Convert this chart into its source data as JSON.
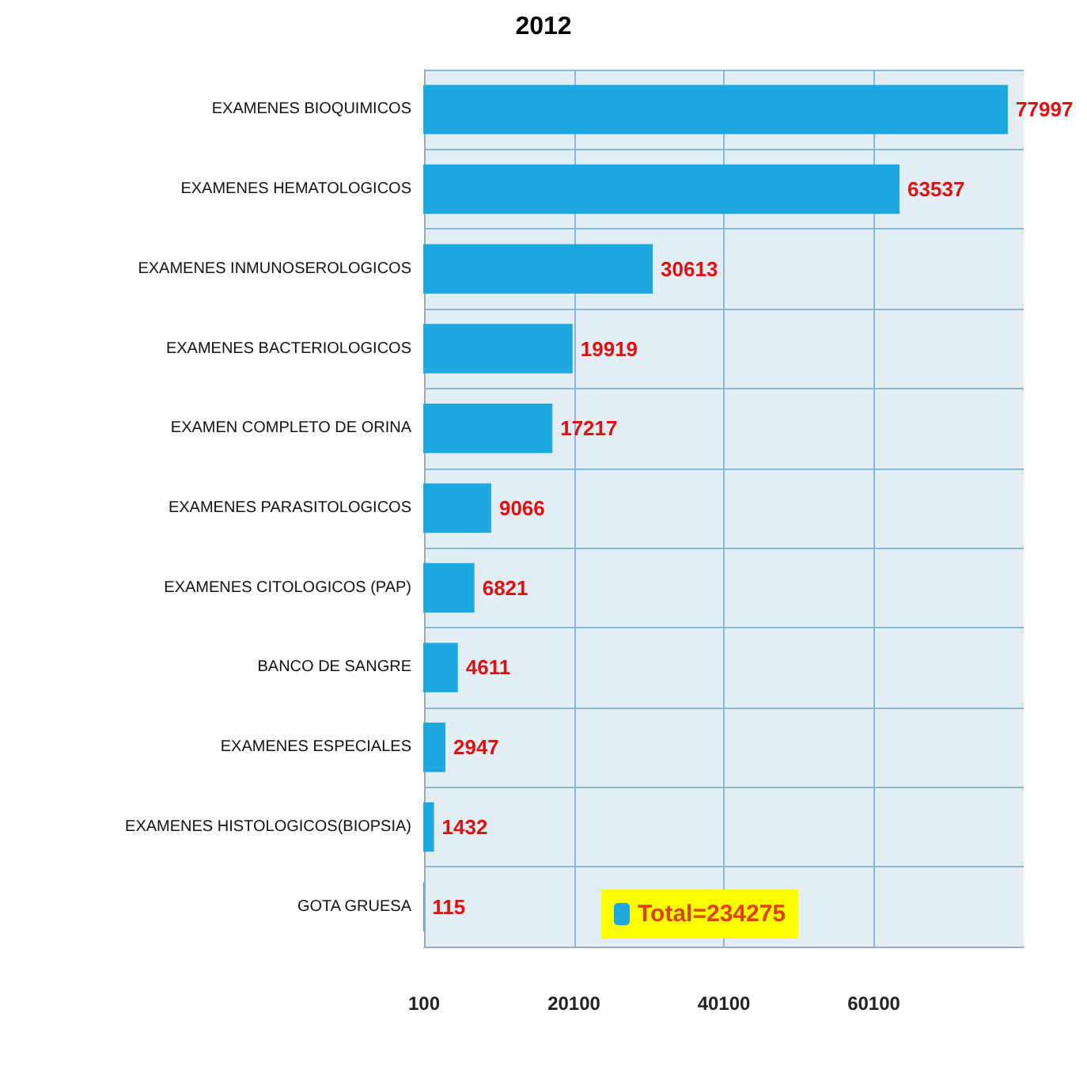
{
  "chart_data": {
    "type": "bar",
    "orientation": "horizontal",
    "title": "2012",
    "categories": [
      "EXAMENES BIOQUIMICOS",
      "EXAMENES HEMATOLOGICOS",
      "EXAMENES INMUNOSEROLOGICOS",
      "EXAMENES BACTERIOLOGICOS",
      "EXAMEN COMPLETO DE ORINA",
      "EXAMENES PARASITOLOGICOS",
      "EXAMENES CITOLOGICOS (PAP)",
      "BANCO DE SANGRE",
      "EXAMENES ESPECIALES",
      "EXAMENES HISTOLOGICOS(BIOPSIA)",
      "GOTA GRUESA"
    ],
    "series": [
      {
        "name": "Total=234275",
        "color": "#1ea8e0",
        "values": [
          77997,
          63537,
          30613,
          19919,
          17217,
          9066,
          6821,
          4611,
          2947,
          1432,
          115
        ]
      }
    ],
    "xlim": [
      100,
      80100
    ],
    "xticks": [
      100,
      20100,
      40100,
      60100
    ],
    "grid": true,
    "data_labels": true,
    "legend": "bottom"
  }
}
